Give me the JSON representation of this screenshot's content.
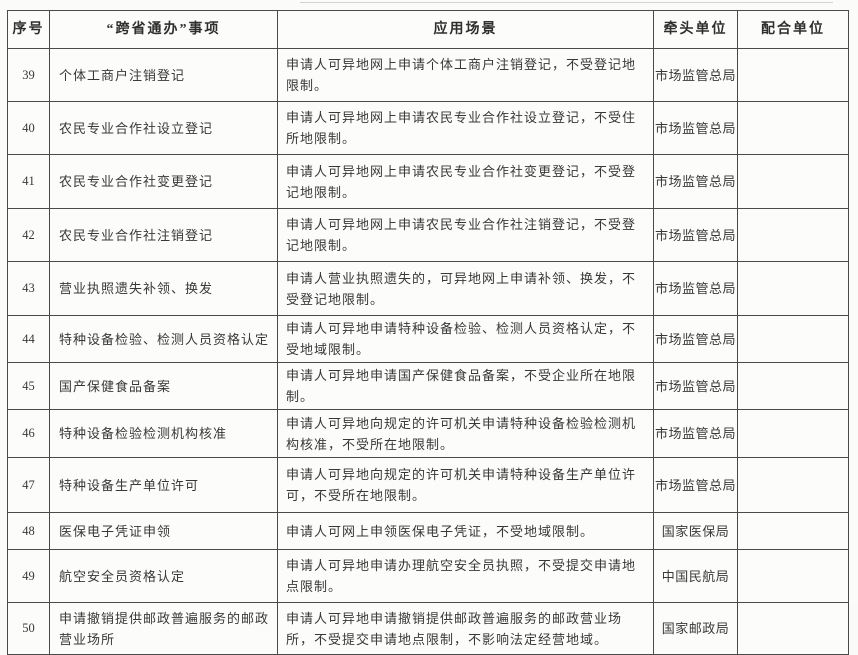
{
  "table": {
    "headers": {
      "no": "序号",
      "item": "“跨省通办”事项",
      "scenario": "应用场景",
      "lead": "牵头单位",
      "support": "配合单位"
    },
    "rows": [
      {
        "no": "39",
        "item": "个体工商户注销登记",
        "scenario": "申请人可异地网上申请个体工商户注销登记，不受登记地限制。",
        "lead": "市场监管总局",
        "support": ""
      },
      {
        "no": "40",
        "item": "农民专业合作社设立登记",
        "scenario": "申请人可异地网上申请农民专业合作社设立登记，不受住所地限制。",
        "lead": "市场监管总局",
        "support": ""
      },
      {
        "no": "41",
        "item": "农民专业合作社变更登记",
        "scenario": "申请人可异地网上申请农民专业合作社变更登记，不受登记地限制。",
        "lead": "市场监管总局",
        "support": ""
      },
      {
        "no": "42",
        "item": "农民专业合作社注销登记",
        "scenario": "申请人可异地网上申请农民专业合作社注销登记，不受登记地限制。",
        "lead": "市场监管总局",
        "support": ""
      },
      {
        "no": "43",
        "item": "营业执照遗失补领、换发",
        "scenario": "申请人营业执照遗失的，可异地网上申请补领、换发，不受登记地限制。",
        "lead": "市场监管总局",
        "support": ""
      },
      {
        "no": "44",
        "item": "特种设备检验、检测人员资格认定",
        "scenario": "申请人可异地申请特种设备检验、检测人员资格认定，不受地域限制。",
        "lead": "市场监管总局",
        "support": ""
      },
      {
        "no": "45",
        "item": "国产保健食品备案",
        "scenario": "申请人可异地申请国产保健食品备案，不受企业所在地限制。",
        "lead": "市场监管总局",
        "support": ""
      },
      {
        "no": "46",
        "item": "特种设备检验检测机构核准",
        "scenario": "申请人可异地向规定的许可机关申请特种设备检验检测机构核准，不受所在地限制。",
        "lead": "市场监管总局",
        "support": ""
      },
      {
        "no": "47",
        "item": "特种设备生产单位许可",
        "scenario": "申请人可异地向规定的许可机关申请特种设备生产单位许可，不受所在地限制。",
        "lead": "市场监管总局",
        "support": ""
      },
      {
        "no": "48",
        "item": "医保电子凭证申领",
        "scenario": "申请人可网上申领医保电子凭证，不受地域限制。",
        "lead": "国家医保局",
        "support": ""
      },
      {
        "no": "49",
        "item": "航空安全员资格认定",
        "scenario": "申请人可异地申请办理航空安全员执照，不受提交申请地点限制。",
        "lead": "中国民航局",
        "support": ""
      },
      {
        "no": "50",
        "item": "申请撤销提供邮政普遍服务的邮政营业场所",
        "scenario": "申请人可异地申请撤销提供邮政普遍服务的邮政营业场所，不受提交申请地点限制，不影响法定经营地域。",
        "lead": "国家邮政局",
        "support": ""
      }
    ]
  }
}
